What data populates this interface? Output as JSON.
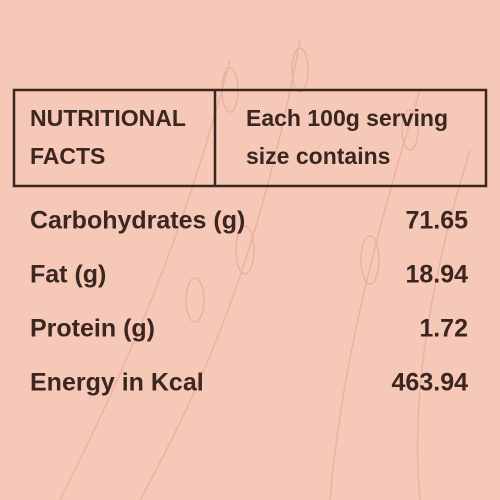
{
  "header": {
    "left": [
      "NUTRITIONAL",
      "FACTS"
    ],
    "right": [
      "Each 100g serving",
      "size contains"
    ]
  },
  "rows": [
    {
      "label": "Carbohydrates (g)",
      "value": 71.65
    },
    {
      "label": "Fat (g)",
      "value": 18.94
    },
    {
      "label": "Protein (g)",
      "value": 1.72
    },
    {
      "label": "Energy in Kcal",
      "value": 463.94
    }
  ]
}
